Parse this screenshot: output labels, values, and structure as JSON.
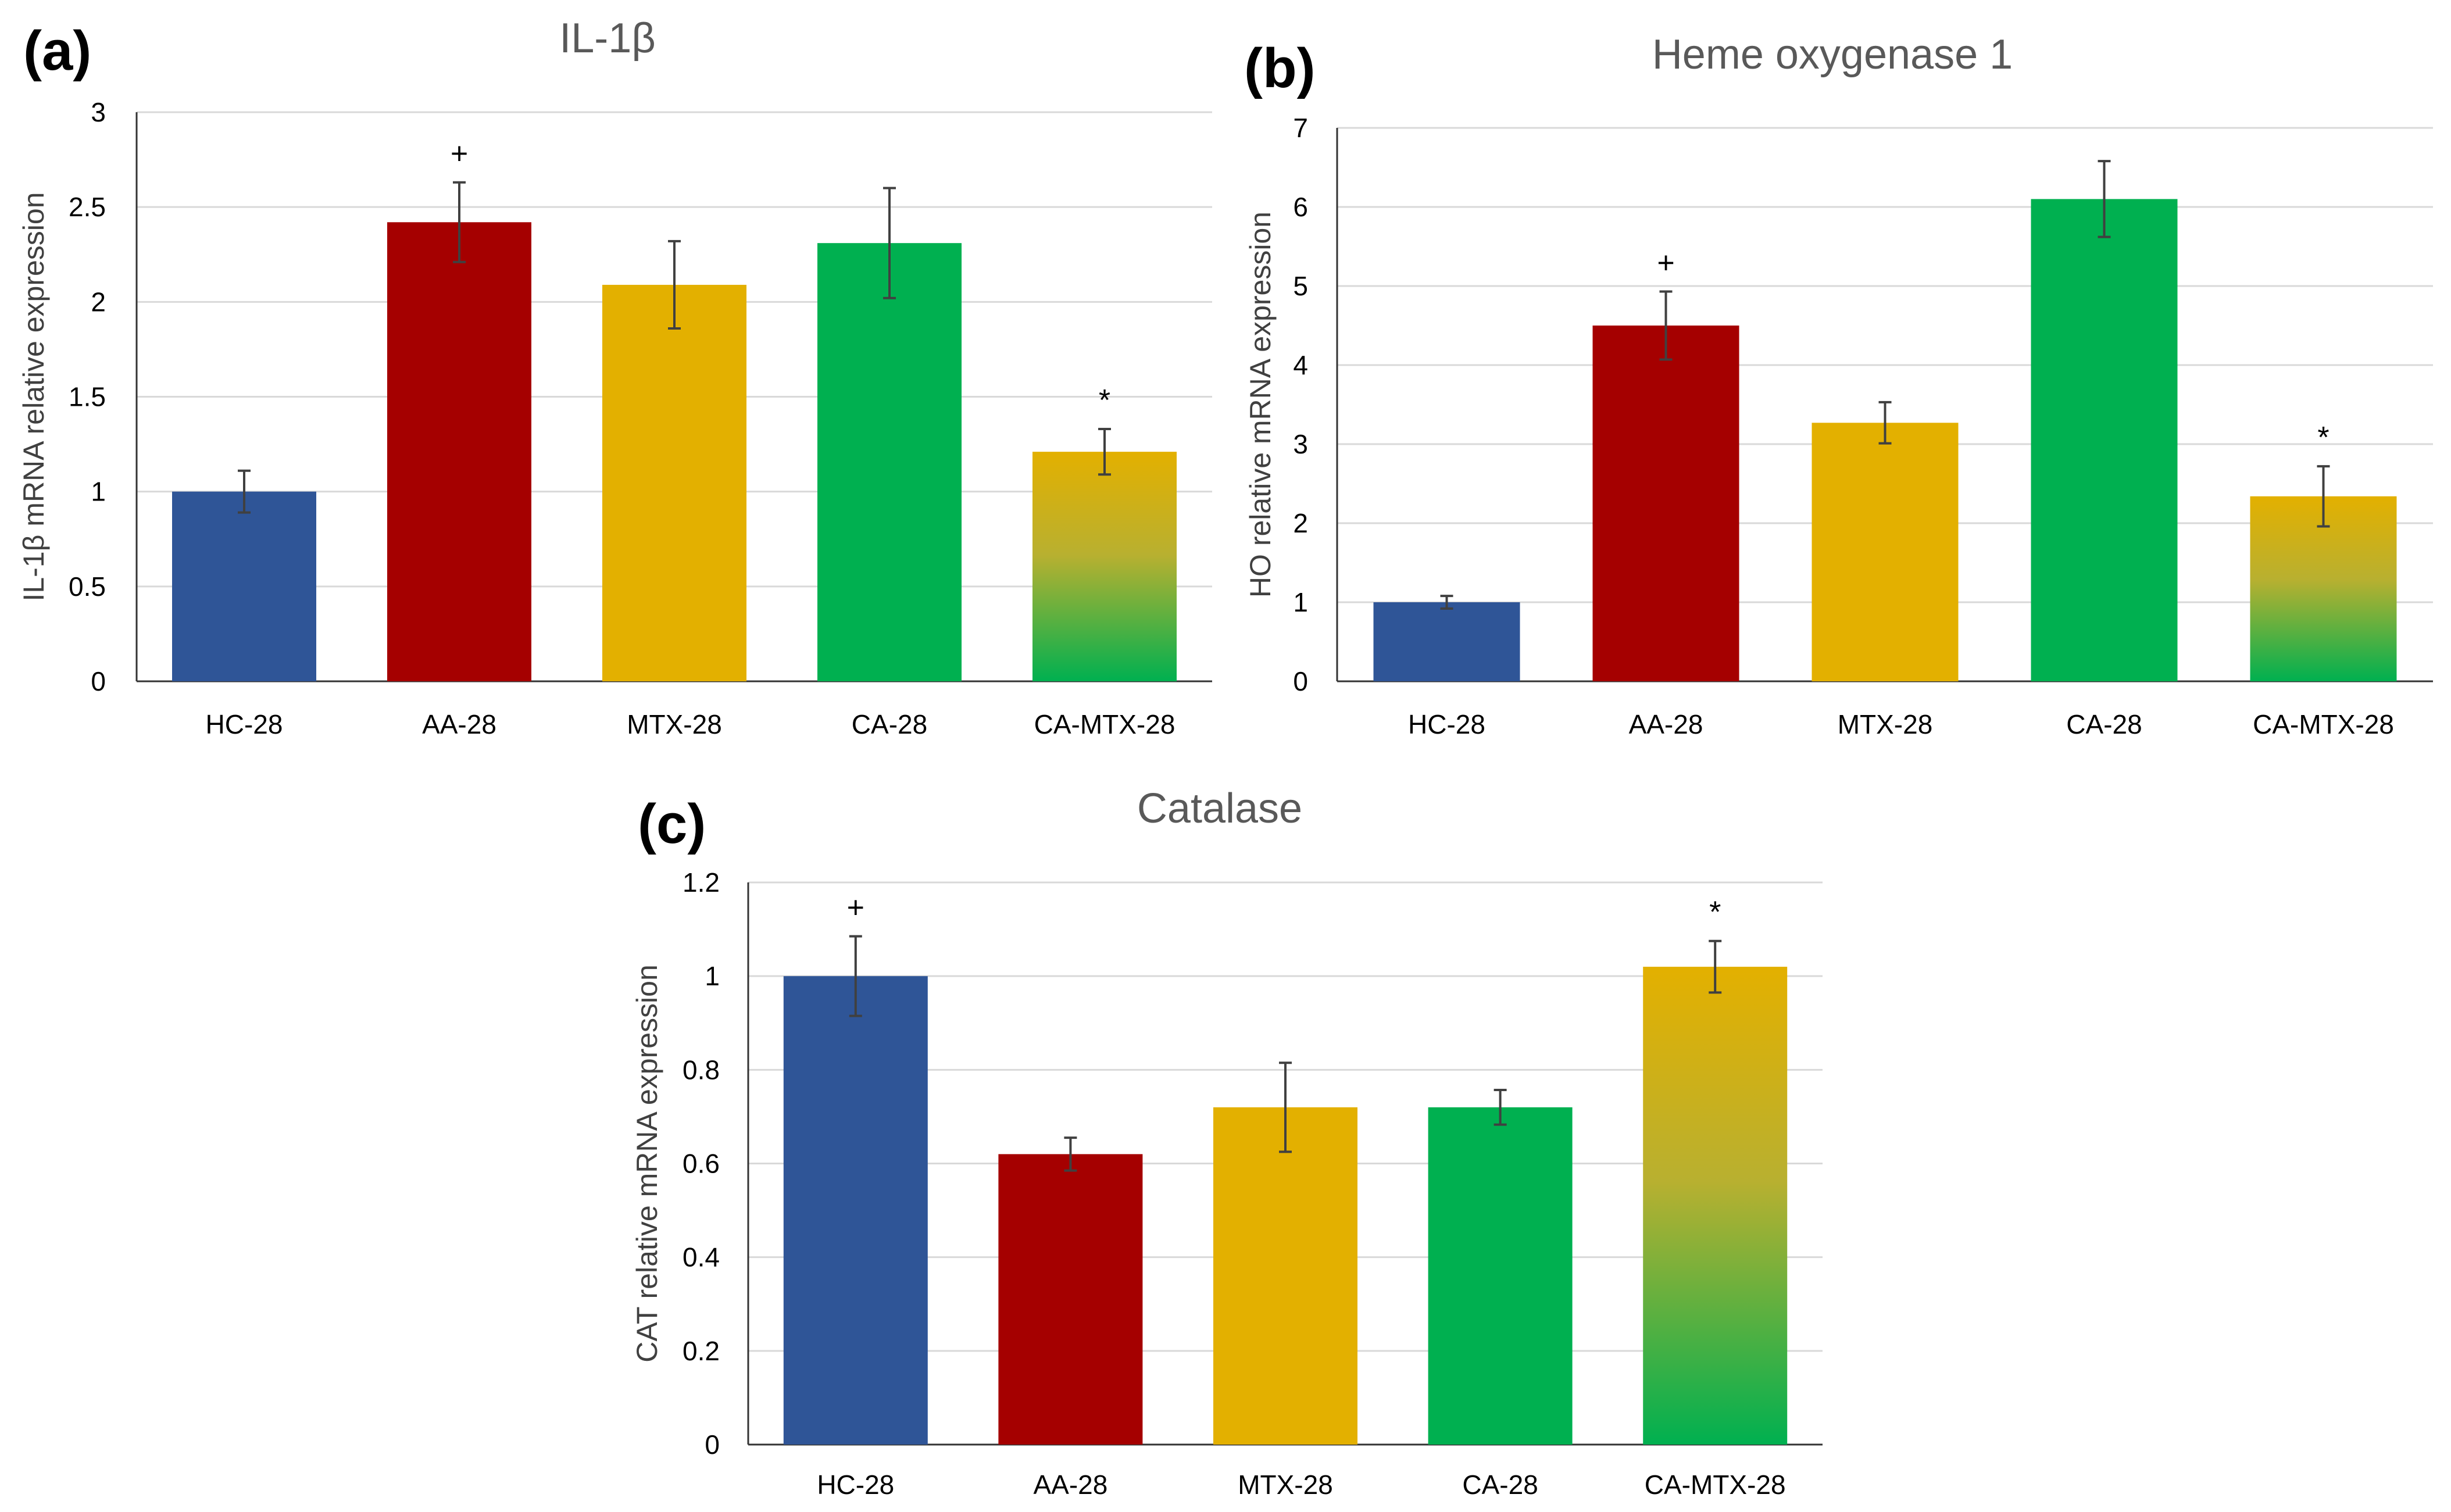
{
  "chart_data": [
    {
      "type": "bar",
      "panel_label": "(a)",
      "title": "IL-1β",
      "ylabel": "IL-1β mRNA relative expression",
      "xlabel": "",
      "ylim": [
        0,
        3
      ],
      "yticks": [
        "0",
        "0.5",
        "1",
        "1.5",
        "2",
        "2.5",
        "3"
      ],
      "categories": [
        "HC-28",
        "AA-28",
        "MTX-28",
        "CA-28",
        "CA-MTX-28"
      ],
      "values": [
        1.0,
        2.42,
        2.09,
        2.31,
        1.21
      ],
      "errors": [
        0.11,
        0.21,
        0.23,
        0.29,
        0.12
      ],
      "annotations": [
        "",
        "+",
        "",
        "",
        "*"
      ],
      "grid": true
    },
    {
      "type": "bar",
      "panel_label": "(b)",
      "title": "Heme oxygenase 1",
      "ylabel": "HO relative mRNA expression",
      "xlabel": "",
      "ylim": [
        0,
        7
      ],
      "yticks": [
        "0",
        "1",
        "2",
        "3",
        "4",
        "5",
        "6",
        "7"
      ],
      "categories": [
        "HC-28",
        "AA-28",
        "MTX-28",
        "CA-28",
        "CA-MTX-28"
      ],
      "values": [
        1.0,
        4.5,
        3.27,
        6.1,
        2.34
      ],
      "errors": [
        0.08,
        0.43,
        0.26,
        0.48,
        0.38
      ],
      "annotations": [
        "",
        "+",
        "",
        "",
        "*"
      ],
      "grid": true
    },
    {
      "type": "bar",
      "panel_label": "(c)",
      "title": "Catalase",
      "ylabel": "CAT relative mRNA expression",
      "xlabel": "",
      "ylim": [
        0,
        1.2
      ],
      "yticks": [
        "0",
        "0.2",
        "0.4",
        "0.6",
        "0.8",
        "1",
        "1.2"
      ],
      "categories": [
        "HC-28",
        "AA-28",
        "MTX-28",
        "CA-28",
        "CA-MTX-28"
      ],
      "values": [
        1.0,
        0.62,
        0.72,
        0.72,
        1.02
      ],
      "errors": [
        0.085,
        0.035,
        0.095,
        0.037,
        0.055
      ],
      "annotations": [
        "+",
        "",
        "",
        "",
        "*"
      ],
      "grid": true
    }
  ],
  "colors": {
    "HC-28": "#2f5597",
    "AA-28": "#a50000",
    "MTX-28": "#e3b000",
    "CA-28": "#00b050",
    "CA-MTX-28_top": "#e3b000",
    "CA-MTX-28_bottom": "#00b050"
  }
}
